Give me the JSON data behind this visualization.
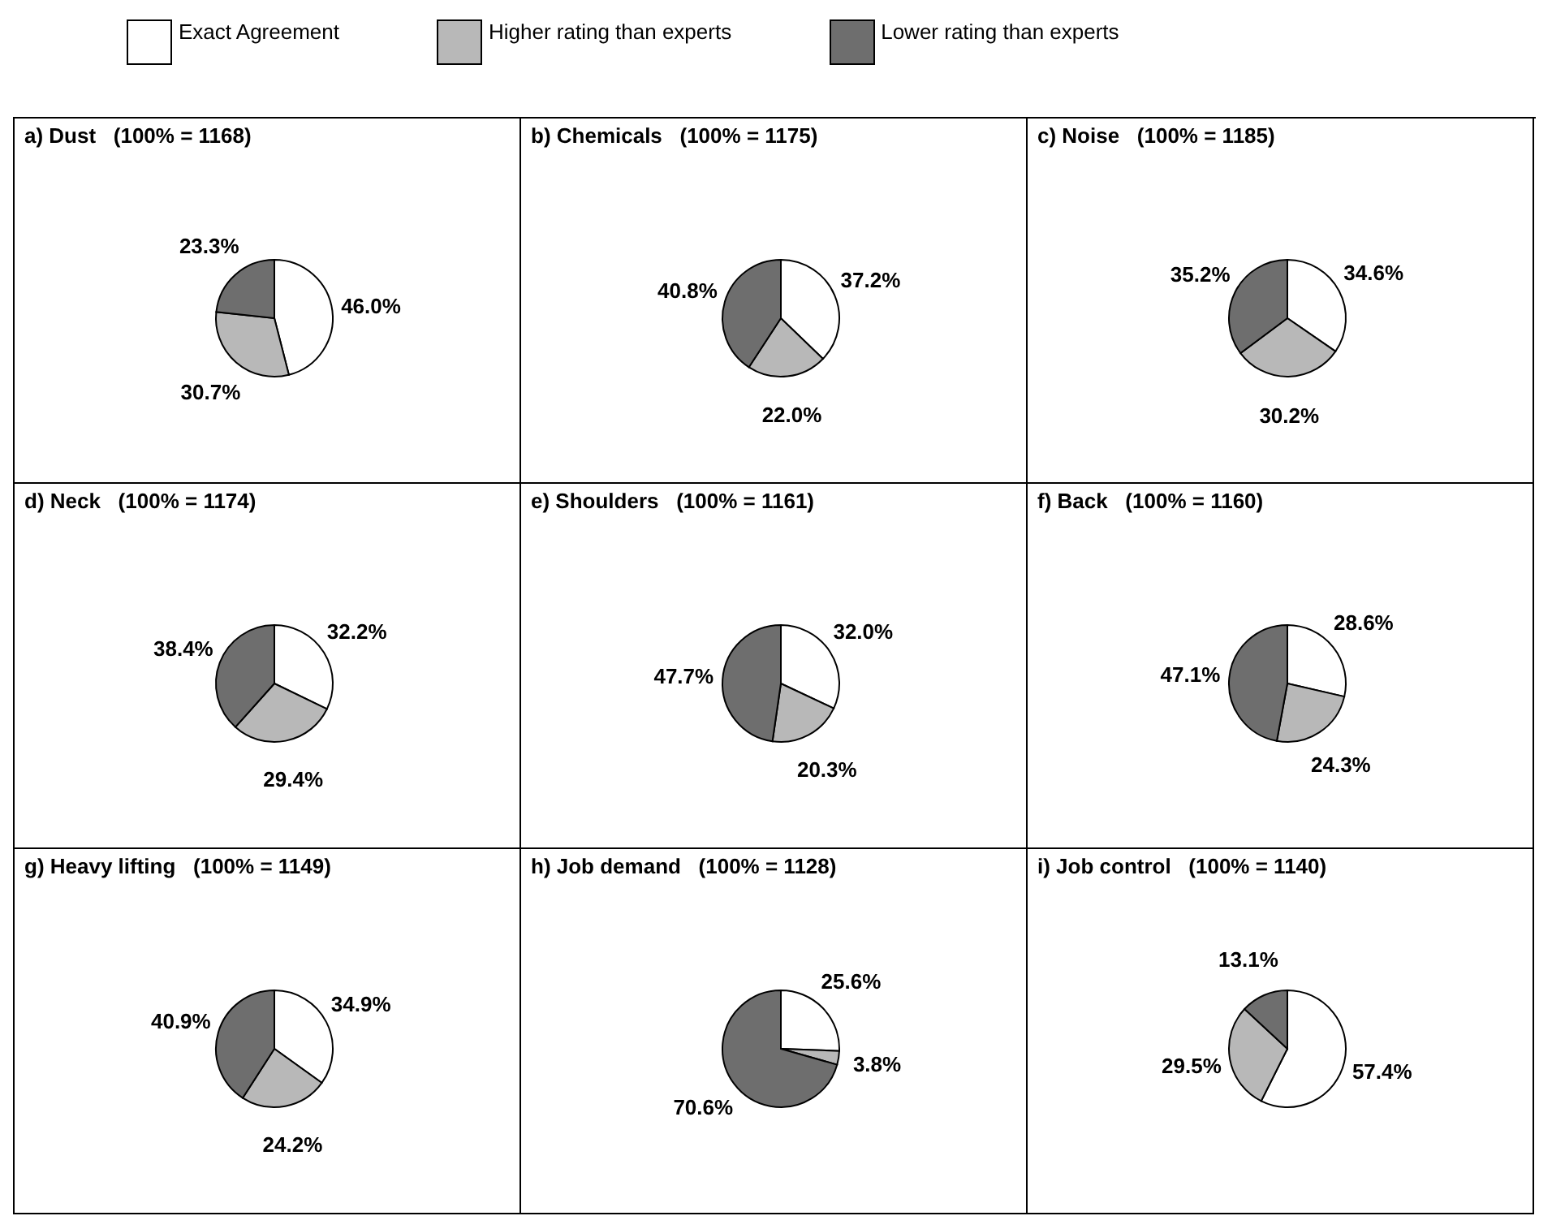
{
  "chart_data": [
    {
      "type": "pie",
      "title": "a) Dust   (100% = 1168)",
      "categories": [
        "Exact Agreement",
        "Higher rating than experts",
        "Lower rating than experts"
      ],
      "values": [
        46.0,
        30.7,
        23.3
      ],
      "value_labels": [
        "46.0%",
        "30.7%",
        "23.3%"
      ],
      "colors": [
        "#ffffff",
        "#b8b8b8",
        "#6e6e6e"
      ],
      "legend": "top"
    },
    {
      "type": "pie",
      "title": "b) Chemicals   (100% = 1175)",
      "categories": [
        null,
        null,
        null
      ],
      "values": [
        37.2,
        22.0,
        40.8
      ],
      "value_labels": [
        "37.2%",
        "22.0%",
        "40.8%"
      ],
      "colors": [
        "#ffffff",
        "#b8b8b8",
        "#6e6e6e"
      ]
    },
    {
      "type": "pie",
      "title": "c) Noise   (100% = 1185)",
      "categories": [
        null,
        null,
        null
      ],
      "values": [
        34.6,
        30.2,
        35.2
      ],
      "value_labels": [
        "34.6%",
        "30.2%",
        "35.2%"
      ],
      "colors": [
        "#ffffff",
        "#b8b8b8",
        "#6e6e6e"
      ]
    },
    {
      "type": "pie",
      "title": "d) Neck   (100% = 1174)",
      "categories": [
        null,
        null,
        null
      ],
      "values": [
        32.2,
        29.4,
        38.4
      ],
      "value_labels": [
        "32.2%",
        "29.4%",
        "38.4%"
      ],
      "colors": [
        "#ffffff",
        "#b8b8b8",
        "#6e6e6e"
      ]
    },
    {
      "type": "pie",
      "title": "e) Shoulders   (100% = 1161)",
      "categories": [
        null,
        null,
        null
      ],
      "values": [
        32.0,
        20.3,
        47.7
      ],
      "value_labels": [
        "32.0%",
        "20.3%",
        "47.7%"
      ],
      "colors": [
        "#ffffff",
        "#b8b8b8",
        "#6e6e6e"
      ]
    },
    {
      "type": "pie",
      "title": "f) Back   (100% = 1160)",
      "categories": [
        null,
        null,
        null
      ],
      "values": [
        28.6,
        24.3,
        47.1
      ],
      "value_labels": [
        "28.6%",
        "24.3%",
        "47.1%"
      ],
      "colors": [
        "#ffffff",
        "#b8b8b8",
        "#6e6e6e"
      ]
    },
    {
      "type": "pie",
      "title": "g) Heavy lifting   (100% = 1149)",
      "categories": [
        null,
        null,
        null
      ],
      "values": [
        34.9,
        24.2,
        40.9
      ],
      "value_labels": [
        "34.9%",
        "24.2%",
        "40.9%"
      ],
      "colors": [
        "#ffffff",
        "#b8b8b8",
        "#6e6e6e"
      ]
    },
    {
      "type": "pie",
      "title": "h) Job demand   (100% = 1128)",
      "categories": [
        null,
        null,
        null
      ],
      "values": [
        25.6,
        3.8,
        70.6
      ],
      "value_labels": [
        "25.6%",
        "3.8%",
        "70.6%"
      ],
      "colors": [
        "#ffffff",
        "#b8b8b8",
        "#6e6e6e"
      ]
    },
    {
      "type": "pie",
      "title": "i) Job control   (100% = 1140)",
      "categories": [
        null,
        null,
        null
      ],
      "values": [
        57.4,
        29.5,
        13.1
      ],
      "value_labels": [
        "57.4%",
        "29.5%",
        "13.1%"
      ],
      "colors": [
        "#ffffff",
        "#b8b8b8",
        "#6e6e6e"
      ]
    }
  ]
}
